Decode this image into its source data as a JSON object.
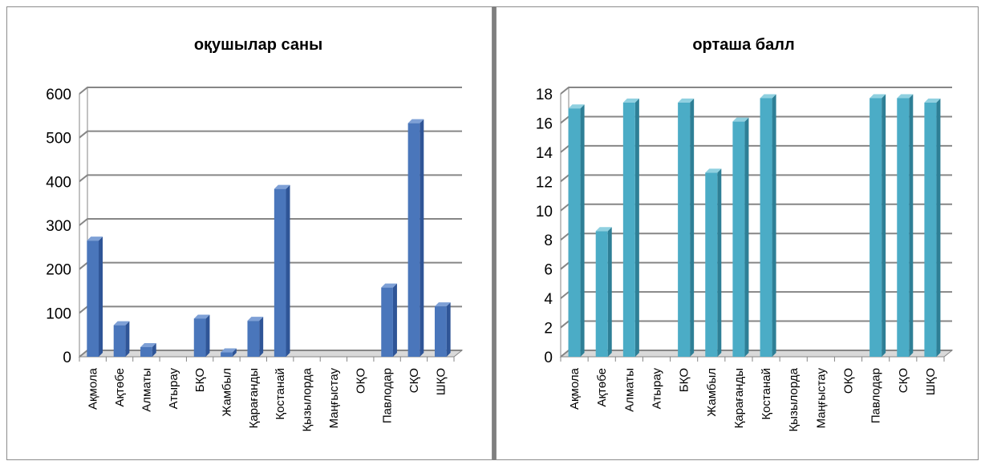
{
  "chart_data": [
    {
      "type": "bar",
      "title": "оқушылар саны",
      "categories": [
        "Ақмола",
        "Ақтөбе",
        "Алматы",
        "Атырау",
        "БҚО",
        "Жамбыл",
        "Қарағанды",
        "Қостанай",
        "Қызылорда",
        "Маңғыстау",
        "ОҚО",
        "Павлодар",
        "СҚО",
        "ШҚО"
      ],
      "values": [
        265,
        72,
        22,
        0,
        87,
        10,
        82,
        383,
        0,
        0,
        0,
        158,
        533,
        115
      ],
      "ylim": [
        0,
        600
      ],
      "yticks": [
        "0",
        "100",
        "200",
        "300",
        "400",
        "500",
        "600"
      ],
      "grid": true,
      "bar_color": "#4a76bb",
      "bar_side_color": "#2f5597",
      "bar_top_color": "#7ea0d6"
    },
    {
      "type": "bar",
      "title": "орташа балл",
      "categories": [
        "Ақмола",
        "Ақтөбе",
        "Алматы",
        "Атырау",
        "БҚО",
        "Жамбыл",
        "Қарағанды",
        "Қостанай",
        "Қызылорда",
        "Маңғыстау",
        "ОҚО",
        "Павлодар",
        "СҚО",
        "ШҚО"
      ],
      "values": [
        17.0,
        8.6,
        17.4,
        0,
        17.4,
        12.6,
        16.1,
        17.7,
        0,
        0,
        0,
        17.7,
        17.7,
        17.4
      ],
      "ylim": [
        0,
        18
      ],
      "yticks": [
        "0",
        "2",
        "4",
        "6",
        "8",
        "10",
        "12",
        "14",
        "16",
        "18"
      ],
      "grid": true,
      "bar_color": "#4bacc6",
      "bar_side_color": "#2e7f96",
      "bar_top_color": "#8fd0e0"
    }
  ]
}
